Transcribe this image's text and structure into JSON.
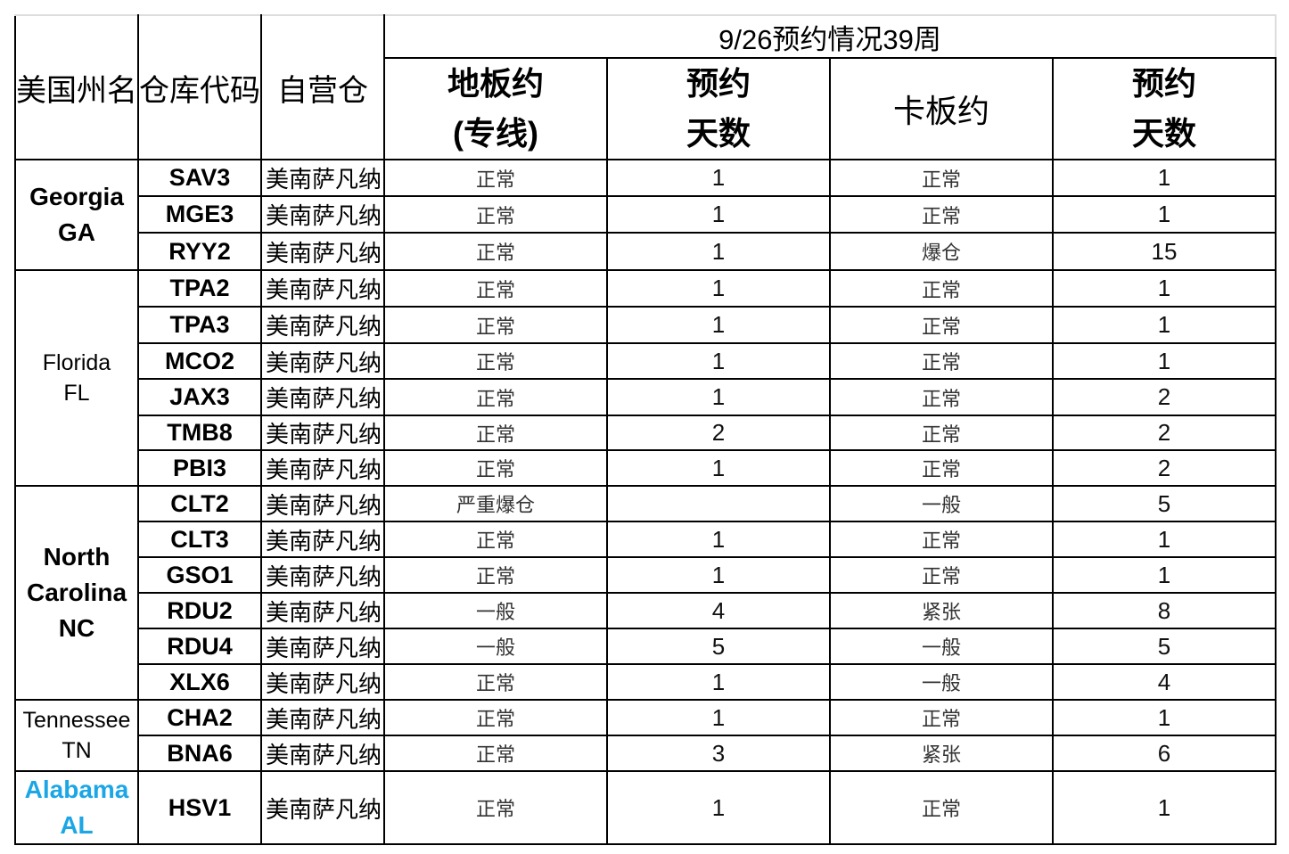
{
  "header": {
    "col_state": "美国州名",
    "col_code": "仓库代码",
    "col_own": "自营仓",
    "title": "9/26预约情况39周",
    "floor_line1": "地板约",
    "floor_line2": "(专线)",
    "days1_line1": "预约",
    "days1_line2": "天数",
    "pallet": "卡板约",
    "days2_line1": "预约",
    "days2_line2": "天数"
  },
  "colors": {
    "alabama": "#1ba6e6"
  },
  "states": [
    {
      "line1": "Georgia",
      "line2": "GA",
      "style": "bold",
      "rows": 3
    },
    {
      "line1": "Florida",
      "line2": "FL",
      "style": "light",
      "rows": 6
    },
    {
      "line1": "North",
      "line2": "Carolina",
      "line3": "NC",
      "style": "bold",
      "rows": 6
    },
    {
      "line1": "Tennessee",
      "line2": "TN",
      "style": "light",
      "rows": 2
    },
    {
      "line1": "Alabama",
      "line2": "AL",
      "style": "blue",
      "rows": 1
    }
  ],
  "rows": [
    {
      "code": "SAV3",
      "own": "美南萨凡纳",
      "floor": "正常",
      "floor_days": "1",
      "pallet": "正常",
      "pallet_days": "1"
    },
    {
      "code": "MGE3",
      "own": "美南萨凡纳",
      "floor": "正常",
      "floor_days": "1",
      "pallet": "正常",
      "pallet_days": "1"
    },
    {
      "code": "RYY2",
      "own": "美南萨凡纳",
      "floor": "正常",
      "floor_days": "1",
      "pallet": "爆仓",
      "pallet_days": "15"
    },
    {
      "code": "TPA2",
      "own": "美南萨凡纳",
      "floor": "正常",
      "floor_days": "1",
      "pallet": "正常",
      "pallet_days": "1"
    },
    {
      "code": "TPA3",
      "own": "美南萨凡纳",
      "floor": "正常",
      "floor_days": "1",
      "pallet": "正常",
      "pallet_days": "1"
    },
    {
      "code": "MCO2",
      "own": "美南萨凡纳",
      "floor": "正常",
      "floor_days": "1",
      "pallet": "正常",
      "pallet_days": "1"
    },
    {
      "code": "JAX3",
      "own": "美南萨凡纳",
      "floor": "正常",
      "floor_days": "1",
      "pallet": "正常",
      "pallet_days": "2"
    },
    {
      "code": "TMB8",
      "own": "美南萨凡纳",
      "floor": "正常",
      "floor_days": "2",
      "pallet": "正常",
      "pallet_days": "2"
    },
    {
      "code": "PBI3",
      "own": "美南萨凡纳",
      "floor": "正常",
      "floor_days": "1",
      "pallet": "正常",
      "pallet_days": "2"
    },
    {
      "code": "CLT2",
      "own": "美南萨凡纳",
      "floor": "严重爆仓",
      "floor_days": "",
      "pallet": "一般",
      "pallet_days": "5"
    },
    {
      "code": "CLT3",
      "own": "美南萨凡纳",
      "floor": "正常",
      "floor_days": "1",
      "pallet": "正常",
      "pallet_days": "1"
    },
    {
      "code": "GSO1",
      "own": "美南萨凡纳",
      "floor": "正常",
      "floor_days": "1",
      "pallet": "正常",
      "pallet_days": "1"
    },
    {
      "code": "RDU2",
      "own": "美南萨凡纳",
      "floor": "一般",
      "floor_days": "4",
      "pallet": "紧张",
      "pallet_days": "8"
    },
    {
      "code": "RDU4",
      "own": "美南萨凡纳",
      "floor": "一般",
      "floor_days": "5",
      "pallet": "一般",
      "pallet_days": "5"
    },
    {
      "code": "XLX6",
      "own": "美南萨凡纳",
      "floor": "正常",
      "floor_days": "1",
      "pallet": "一般",
      "pallet_days": "4"
    },
    {
      "code": "CHA2",
      "own": "美南萨凡纳",
      "floor": "正常",
      "floor_days": "1",
      "pallet": "正常",
      "pallet_days": "1"
    },
    {
      "code": "BNA6",
      "own": "美南萨凡纳",
      "floor": "正常",
      "floor_days": "3",
      "pallet": "紧张",
      "pallet_days": "6"
    },
    {
      "code": "HSV1",
      "own": "美南萨凡纳",
      "floor": "正常",
      "floor_days": "1",
      "pallet": "正常",
      "pallet_days": "1"
    }
  ]
}
